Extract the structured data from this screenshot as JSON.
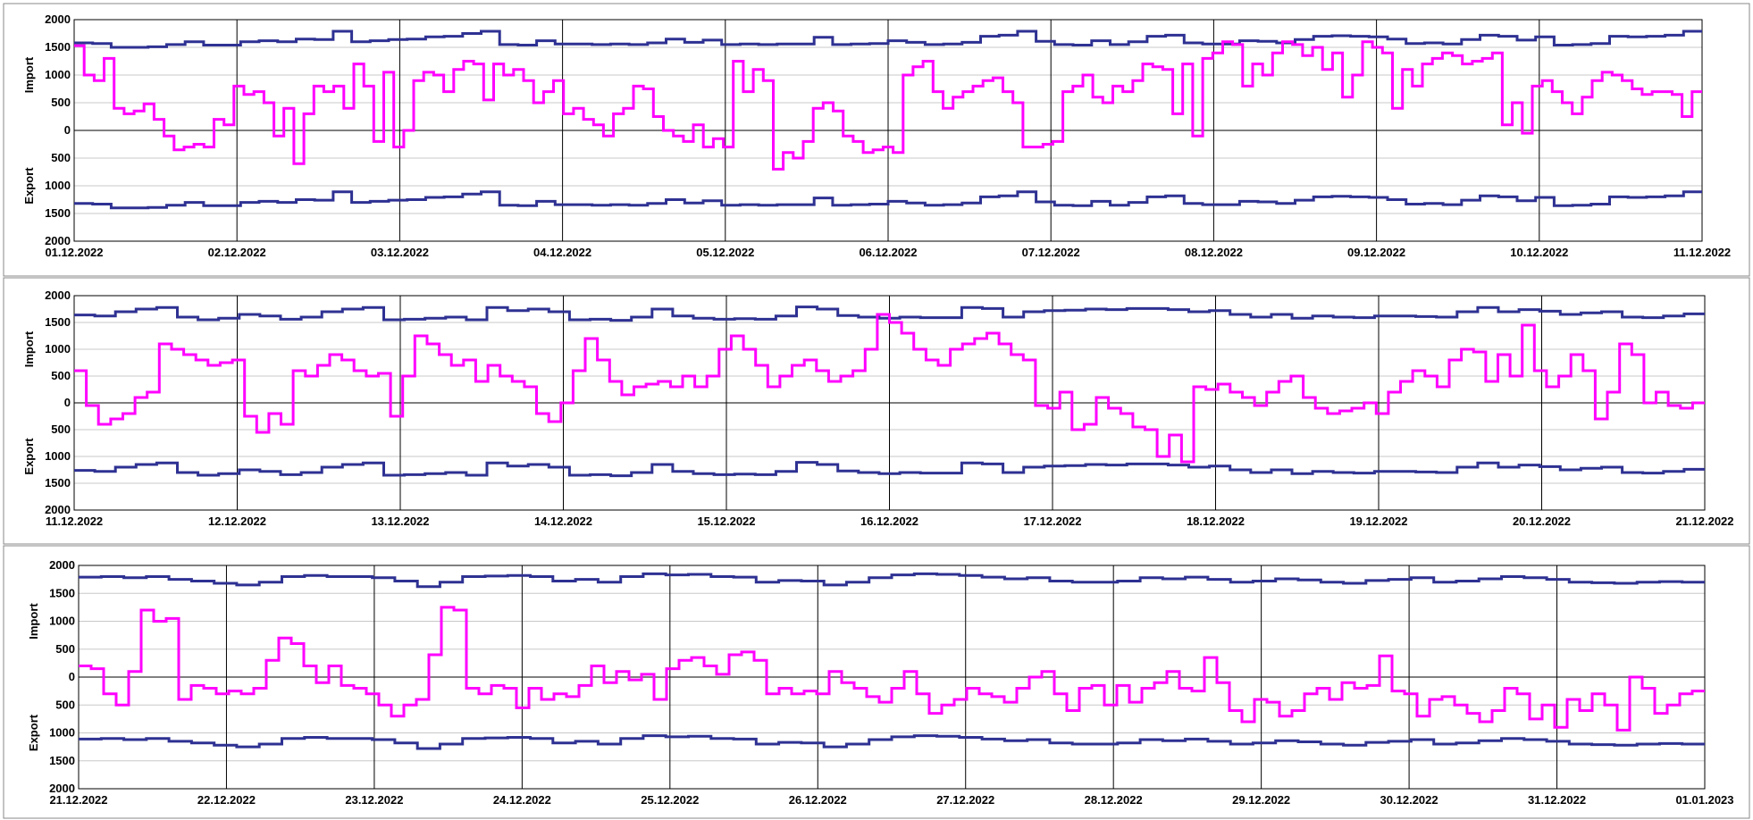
{
  "chart_data": [
    {
      "type": "line",
      "ylabel_top": "Import",
      "ylabel_bottom": "Export",
      "y_tick_labels": [
        "2000",
        "1500",
        "1000",
        "500",
        "0",
        "500",
        "1000",
        "1500",
        "2000"
      ],
      "ylim": [
        -2000,
        2000
      ],
      "x_tick_labels": [
        "01.12.2022",
        "02.12.2022",
        "03.12.2022",
        "04.12.2022",
        "05.12.2022",
        "06.12.2022",
        "07.12.2022",
        "08.12.2022",
        "09.12.2022",
        "10.12.2022",
        "11.12.2022"
      ],
      "grid": true,
      "series": [
        {
          "color": "#2e3192",
          "values": [
            1580,
            1570,
            1500,
            1500,
            1510,
            1550,
            1600,
            1540,
            1540,
            1600,
            1620,
            1600,
            1650,
            1640,
            1790,
            1600,
            1620,
            1640,
            1650,
            1690,
            1700,
            1750,
            1790,
            1550,
            1540,
            1620,
            1560,
            1560,
            1550,
            1560,
            1550,
            1580,
            1650,
            1590,
            1630,
            1550,
            1560,
            1550,
            1560,
            1560,
            1680,
            1550,
            1560,
            1570,
            1620,
            1590,
            1550,
            1560,
            1590,
            1700,
            1720,
            1790,
            1610,
            1550,
            1540,
            1620,
            1550,
            1600,
            1700,
            1720,
            1580,
            1560,
            1560,
            1620,
            1610,
            1580,
            1640,
            1700,
            1710,
            1700,
            1690,
            1650,
            1570,
            1580,
            1560,
            1640,
            1720,
            1700,
            1630,
            1690,
            1540,
            1550,
            1570,
            1700,
            1690,
            1700,
            1720,
            1790
          ]
        },
        {
          "color": "#ff00ff",
          "values": [
            1530,
            1000,
            900,
            1300,
            400,
            300,
            350,
            480,
            200,
            -100,
            -350,
            -300,
            -250,
            -300,
            200,
            100,
            800,
            650,
            700,
            500,
            -100,
            400,
            -600,
            300,
            800,
            700,
            800,
            400,
            1200,
            800,
            -200,
            1050,
            -300,
            0,
            900,
            1050,
            1000,
            700,
            1100,
            1250,
            1200,
            550,
            1200,
            1000,
            1100,
            900,
            500,
            700,
            900,
            300,
            400,
            200,
            100,
            -100,
            300,
            400,
            800,
            750,
            250,
            0,
            -100,
            -200,
            100,
            -300,
            -150,
            -300,
            1250,
            700,
            1100,
            900,
            -700,
            -400,
            -500,
            -200,
            400,
            500,
            350,
            -100,
            -200,
            -400,
            -350,
            -300,
            -400,
            1000,
            1150,
            1250,
            700,
            400,
            600,
            700,
            800,
            900,
            950,
            700,
            500,
            -300,
            -300,
            -250,
            -200,
            700,
            800,
            1000,
            600,
            500,
            800,
            700,
            900,
            1200,
            1150,
            1100,
            300,
            1200,
            -100,
            1300,
            1400,
            1600,
            1550,
            800,
            1200,
            1000,
            1400,
            1600,
            1550,
            1350,
            1500,
            1100,
            1400,
            600,
            1000,
            1600,
            1500,
            1400,
            400,
            1100,
            800,
            1200,
            1300,
            1400,
            1350,
            1200,
            1250,
            1300,
            1400,
            100,
            500,
            -50,
            800,
            900,
            700,
            500,
            300,
            600,
            900,
            1050,
            1000,
            900,
            750,
            650,
            700,
            700,
            650,
            250,
            700
          ]
        }
      ]
    },
    {
      "type": "line",
      "ylabel_top": "Import",
      "ylabel_bottom": "Export",
      "y_tick_labels": [
        "2000",
        "1500",
        "1000",
        "500",
        "0",
        "500",
        "1000",
        "1500",
        "2000"
      ],
      "ylim": [
        -2000,
        2000
      ],
      "x_tick_labels": [
        "11.12.2022",
        "12.12.2022",
        "13.12.2022",
        "14.12.2022",
        "15.12.2022",
        "16.12.2022",
        "17.12.2022",
        "18.12.2022",
        "19.12.2022",
        "20.12.2022",
        "21.12.2022"
      ],
      "grid": true,
      "series": [
        {
          "color": "#2e3192",
          "values": [
            1640,
            1620,
            1700,
            1750,
            1780,
            1600,
            1550,
            1580,
            1650,
            1620,
            1560,
            1600,
            1700,
            1750,
            1780,
            1550,
            1560,
            1580,
            1600,
            1550,
            1780,
            1720,
            1750,
            1700,
            1550,
            1560,
            1540,
            1600,
            1750,
            1620,
            1580,
            1560,
            1570,
            1560,
            1620,
            1790,
            1750,
            1630,
            1600,
            1580,
            1600,
            1590,
            1590,
            1780,
            1760,
            1600,
            1700,
            1720,
            1730,
            1750,
            1740,
            1760,
            1760,
            1740,
            1700,
            1720,
            1650,
            1600,
            1650,
            1580,
            1620,
            1600,
            1590,
            1620,
            1620,
            1610,
            1600,
            1700,
            1780,
            1700,
            1740,
            1710,
            1650,
            1680,
            1700,
            1600,
            1590,
            1620,
            1660
          ]
        },
        {
          "color": "#ff00ff",
          "values": [
            600,
            -50,
            -400,
            -300,
            -200,
            100,
            200,
            1100,
            1000,
            900,
            800,
            700,
            750,
            800,
            -250,
            -550,
            -200,
            -400,
            600,
            500,
            700,
            900,
            800,
            600,
            500,
            550,
            -250,
            500,
            1250,
            1100,
            900,
            700,
            800,
            400,
            700,
            500,
            400,
            300,
            -200,
            -350,
            0,
            600,
            1200,
            800,
            400,
            150,
            300,
            350,
            400,
            300,
            500,
            300,
            500,
            1000,
            1250,
            1000,
            700,
            300,
            500,
            700,
            800,
            600,
            400,
            500,
            600,
            1000,
            1650,
            1500,
            1300,
            1000,
            800,
            700,
            1000,
            1100,
            1200,
            1300,
            1100,
            900,
            800,
            -50,
            -100,
            200,
            -500,
            -400,
            100,
            -100,
            -200,
            -450,
            -500,
            -1000,
            -600,
            -1100,
            300,
            250,
            350,
            200,
            100,
            -50,
            200,
            400,
            500,
            100,
            -100,
            -200,
            -150,
            -100,
            0,
            -200,
            200,
            400,
            600,
            500,
            300,
            800,
            1000,
            950,
            400,
            900,
            500,
            1450,
            600,
            300,
            500,
            900,
            600,
            -300,
            200,
            1100,
            900,
            0,
            200,
            -50,
            -100,
            0
          ]
        }
      ]
    },
    {
      "type": "line",
      "ylabel_top": "Import",
      "ylabel_bottom": "Export",
      "y_tick_labels": [
        "2000",
        "1500",
        "1000",
        "500",
        "0",
        "500",
        "1000",
        "1500",
        "2000"
      ],
      "ylim": [
        -2000,
        2000
      ],
      "x_tick_labels": [
        "21.12.2022",
        "22.12.2022",
        "23.12.2022",
        "24.12.2022",
        "25.12.2022",
        "26.12.2022",
        "27.12.2022",
        "28.12.2022",
        "29.12.2022",
        "30.12.2022",
        "31.12.2022",
        "01.01.2023"
      ],
      "grid": true,
      "series": [
        {
          "color": "#2e3192",
          "values": [
            1790,
            1800,
            1780,
            1800,
            1750,
            1720,
            1680,
            1650,
            1700,
            1800,
            1820,
            1800,
            1800,
            1780,
            1720,
            1620,
            1700,
            1800,
            1810,
            1820,
            1800,
            1720,
            1750,
            1700,
            1800,
            1850,
            1830,
            1840,
            1800,
            1790,
            1700,
            1730,
            1720,
            1650,
            1700,
            1780,
            1830,
            1850,
            1840,
            1820,
            1790,
            1760,
            1780,
            1720,
            1700,
            1700,
            1720,
            1780,
            1760,
            1790,
            1750,
            1700,
            1720,
            1760,
            1740,
            1700,
            1680,
            1730,
            1750,
            1780,
            1700,
            1720,
            1760,
            1800,
            1780,
            1750,
            1700,
            1690,
            1680,
            1700,
            1710,
            1700
          ]
        },
        {
          "color": "#ff00ff",
          "values": [
            200,
            150,
            -300,
            -500,
            100,
            1200,
            1000,
            1050,
            -400,
            -150,
            -200,
            -300,
            -250,
            -300,
            -200,
            300,
            700,
            600,
            200,
            -100,
            200,
            -150,
            -200,
            -300,
            -500,
            -700,
            -500,
            -400,
            400,
            1250,
            1200,
            -200,
            -300,
            -150,
            -200,
            -550,
            -200,
            -400,
            -300,
            -350,
            -150,
            200,
            -100,
            100,
            -50,
            50,
            -400,
            150,
            300,
            350,
            200,
            50,
            400,
            450,
            300,
            -300,
            -200,
            -300,
            -250,
            -300,
            100,
            -100,
            -200,
            -350,
            -450,
            -200,
            100,
            -300,
            -650,
            -500,
            -400,
            -200,
            -300,
            -350,
            -450,
            -200,
            0,
            100,
            -300,
            -600,
            -200,
            -150,
            -500,
            -150,
            -450,
            -200,
            -100,
            100,
            -200,
            -250,
            350,
            -100,
            -600,
            -800,
            -400,
            -450,
            -700,
            -600,
            -300,
            -200,
            -400,
            -100,
            -200,
            -150,
            380,
            -250,
            -300,
            -700,
            -400,
            -350,
            -500,
            -650,
            -800,
            -600,
            -200,
            -300,
            -750,
            -500,
            -900,
            -400,
            -600,
            -300,
            -500,
            -950,
            0,
            -200,
            -650,
            -500,
            -300,
            -250
          ]
        }
      ]
    }
  ]
}
